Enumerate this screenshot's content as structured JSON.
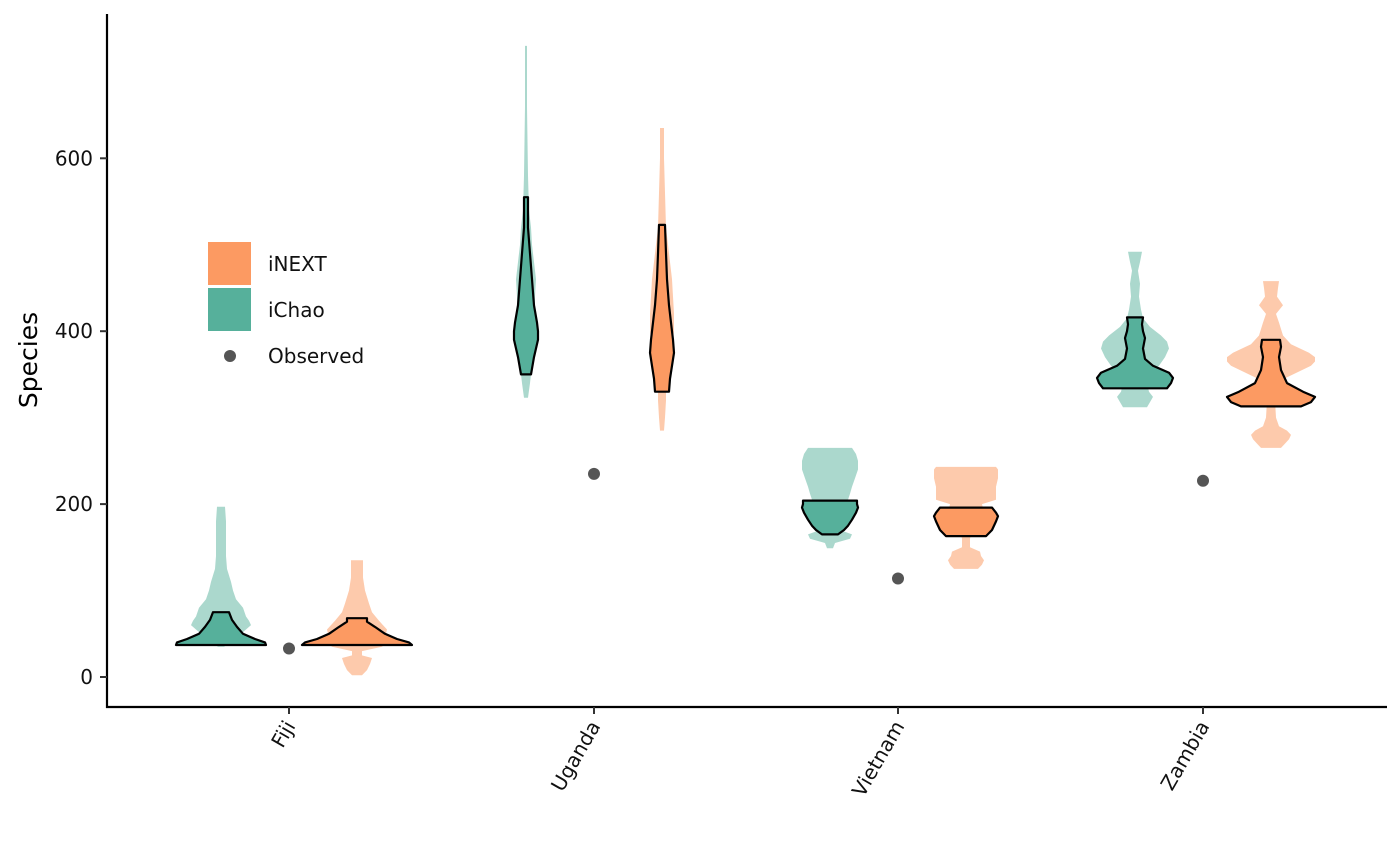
{
  "chart_data": {
    "type": "violin",
    "ylabel": "Species",
    "xlabel": "",
    "ylim": [
      -35,
      765
    ],
    "yticks": [
      0,
      200,
      400,
      600
    ],
    "categories": [
      "Fiji",
      "Uganda",
      "Vietnam",
      "Zambia"
    ],
    "legend": {
      "placement": "upper-left",
      "items": [
        {
          "label": "iNEXT",
          "kind": "swatch",
          "color": "#FC9A62"
        },
        {
          "label": "iChao",
          "kind": "swatch",
          "color": "#56B09B"
        },
        {
          "label": "Observed",
          "kind": "point",
          "color": "#555555"
        }
      ]
    },
    "observed": [
      {
        "category": "Fiji",
        "value": 33
      },
      {
        "category": "Uganda",
        "value": 235
      },
      {
        "category": "Vietnam",
        "value": 114
      },
      {
        "category": "Zambia",
        "value": 227
      }
    ],
    "series": [
      {
        "name": "iChao",
        "fill_outer": "#ABD8CD",
        "fill_inner": "#56B09B",
        "groups": [
          {
            "category": "Fiji",
            "outer": [
              [
                35,
                3
              ],
              [
                40,
                10
              ],
              [
                45,
                12
              ],
              [
                50,
                20
              ],
              [
                55,
                25
              ],
              [
                60,
                30
              ],
              [
                65,
                28
              ],
              [
                70,
                25
              ],
              [
                80,
                22
              ],
              [
                90,
                15
              ],
              [
                100,
                12
              ],
              [
                110,
                10
              ],
              [
                125,
                6
              ],
              [
                140,
                5
              ],
              [
                160,
                5
              ],
              [
                180,
                5
              ],
              [
                197,
                4
              ]
            ],
            "inner": [
              [
                37,
                45
              ],
              [
                40,
                44
              ],
              [
                44,
                34
              ],
              [
                50,
                22
              ],
              [
                58,
                16
              ],
              [
                66,
                11
              ],
              [
                75,
                8
              ]
            ]
          },
          {
            "category": "Uganda",
            "outer": [
              [
                323,
                2
              ],
              [
                340,
                4
              ],
              [
                360,
                6
              ],
              [
                380,
                7
              ],
              [
                400,
                8
              ],
              [
                420,
                9
              ],
              [
                440,
                9
              ],
              [
                460,
                10
              ],
              [
                480,
                8
              ],
              [
                500,
                6
              ],
              [
                520,
                5
              ],
              [
                540,
                3
              ],
              [
                580,
                2
              ],
              [
                620,
                1.5
              ],
              [
                660,
                1
              ],
              [
                700,
                1
              ],
              [
                730,
                1
              ]
            ],
            "inner": [
              [
                350,
                5
              ],
              [
                370,
                8
              ],
              [
                390,
                12
              ],
              [
                400,
                12
              ],
              [
                410,
                11
              ],
              [
                430,
                8
              ],
              [
                460,
                6
              ],
              [
                490,
                4
              ],
              [
                520,
                2
              ],
              [
                555,
                2
              ]
            ]
          },
          {
            "category": "Vietnam",
            "outer": [
              [
                149,
                3
              ],
              [
                155,
                5
              ],
              [
                160,
                20
              ],
              [
                165,
                22
              ],
              [
                170,
                10
              ],
              [
                175,
                7
              ],
              [
                180,
                10
              ],
              [
                185,
                12
              ],
              [
                190,
                13
              ],
              [
                195,
                15
              ],
              [
                200,
                16
              ],
              [
                205,
                18
              ],
              [
                212,
                20
              ],
              [
                220,
                22
              ],
              [
                230,
                25
              ],
              [
                240,
                28
              ],
              [
                250,
                28
              ],
              [
                258,
                26
              ],
              [
                265,
                22
              ]
            ],
            "inner": [
              [
                165,
                8
              ],
              [
                170,
                14
              ],
              [
                175,
                18
              ],
              [
                182,
                22
              ],
              [
                190,
                26
              ],
              [
                196,
                28
              ],
              [
                200,
                27
              ],
              [
                204,
                27
              ]
            ]
          },
          {
            "category": "Zambia",
            "outer": [
              [
                312,
                12
              ],
              [
                318,
                15
              ],
              [
                324,
                18
              ],
              [
                330,
                14
              ],
              [
                340,
                12
              ],
              [
                350,
                15
              ],
              [
                360,
                24
              ],
              [
                370,
                30
              ],
              [
                380,
                34
              ],
              [
                388,
                32
              ],
              [
                395,
                26
              ],
              [
                405,
                15
              ],
              [
                415,
                8
              ],
              [
                425,
                6
              ],
              [
                440,
                4
              ],
              [
                455,
                5
              ],
              [
                470,
                3
              ],
              [
                480,
                5
              ],
              [
                492,
                7
              ]
            ],
            "inner": [
              [
                334,
                32
              ],
              [
                340,
                36
              ],
              [
                346,
                38
              ],
              [
                352,
                34
              ],
              [
                360,
                18
              ],
              [
                368,
                10
              ],
              [
                380,
                8
              ],
              [
                392,
                10
              ],
              [
                400,
                8
              ],
              [
                408,
                7
              ],
              [
                416,
                8
              ]
            ]
          }
        ]
      },
      {
        "name": "iNEXT",
        "fill_outer": "#FDCAAC",
        "fill_inner": "#FC9A62",
        "groups": [
          {
            "category": "Fiji",
            "outer": [
              [
                2,
                5
              ],
              [
                8,
                10
              ],
              [
                15,
                13
              ],
              [
                22,
                15
              ],
              [
                25,
                5
              ],
              [
                30,
                5
              ],
              [
                35,
                25
              ],
              [
                40,
                30
              ],
              [
                45,
                28
              ],
              [
                55,
                30
              ],
              [
                65,
                22
              ],
              [
                75,
                15
              ],
              [
                85,
                12
              ],
              [
                100,
                8
              ],
              [
                115,
                6
              ],
              [
                130,
                6
              ],
              [
                135,
                6
              ]
            ],
            "inner": [
              [
                37,
                55
              ],
              [
                40,
                52
              ],
              [
                44,
                40
              ],
              [
                50,
                28
              ],
              [
                58,
                18
              ],
              [
                64,
                10
              ],
              [
                68,
                10
              ]
            ]
          },
          {
            "category": "Uganda",
            "outer": [
              [
                285,
                2
              ],
              [
                300,
                3
              ],
              [
                320,
                4
              ],
              [
                340,
                4
              ],
              [
                360,
                6
              ],
              [
                380,
                10
              ],
              [
                400,
                12
              ],
              [
                420,
                12
              ],
              [
                440,
                11
              ],
              [
                460,
                10
              ],
              [
                480,
                8
              ],
              [
                500,
                6
              ],
              [
                520,
                4
              ],
              [
                560,
                3
              ],
              [
                600,
                2
              ],
              [
                635,
                2
              ]
            ],
            "inner": [
              [
                330,
                7
              ],
              [
                345,
                8
              ],
              [
                360,
                10
              ],
              [
                375,
                12
              ],
              [
                390,
                11
              ],
              [
                410,
                9
              ],
              [
                430,
                7
              ],
              [
                460,
                5
              ],
              [
                490,
                4
              ],
              [
                523,
                3
              ]
            ]
          },
          {
            "category": "Vietnam",
            "outer": [
              [
                125,
                12
              ],
              [
                130,
                16
              ],
              [
                135,
                18
              ],
              [
                140,
                15
              ],
              [
                145,
                14
              ],
              [
                150,
                4
              ],
              [
                160,
                4
              ],
              [
                170,
                6
              ],
              [
                180,
                14
              ],
              [
                190,
                18
              ],
              [
                200,
                16
              ],
              [
                205,
                30
              ],
              [
                210,
                30
              ],
              [
                220,
                30
              ],
              [
                230,
                32
              ],
              [
                240,
                32
              ],
              [
                243,
                30
              ]
            ],
            "inner": [
              [
                163,
                20
              ],
              [
                170,
                26
              ],
              [
                180,
                30
              ],
              [
                186,
                32
              ],
              [
                190,
                30
              ],
              [
                196,
                26
              ]
            ]
          },
          {
            "category": "Zambia",
            "outer": [
              [
                265,
                10
              ],
              [
                270,
                14
              ],
              [
                275,
                18
              ],
              [
                280,
                20
              ],
              [
                285,
                16
              ],
              [
                290,
                8
              ],
              [
                300,
                5
              ],
              [
                320,
                4
              ],
              [
                340,
                4
              ],
              [
                360,
                40
              ],
              [
                365,
                44
              ],
              [
                370,
                44
              ],
              [
                375,
                38
              ],
              [
                385,
                20
              ],
              [
                395,
                12
              ],
              [
                410,
                8
              ],
              [
                420,
                5
              ],
              [
                430,
                12
              ],
              [
                440,
                6
              ],
              [
                450,
                7
              ],
              [
                458,
                8
              ]
            ],
            "inner": [
              [
                313,
                30
              ],
              [
                318,
                40
              ],
              [
                324,
                44
              ],
              [
                330,
                32
              ],
              [
                340,
                16
              ],
              [
                355,
                10
              ],
              [
                370,
                8
              ],
              [
                382,
                10
              ],
              [
                390,
                9
              ]
            ]
          }
        ]
      }
    ]
  }
}
